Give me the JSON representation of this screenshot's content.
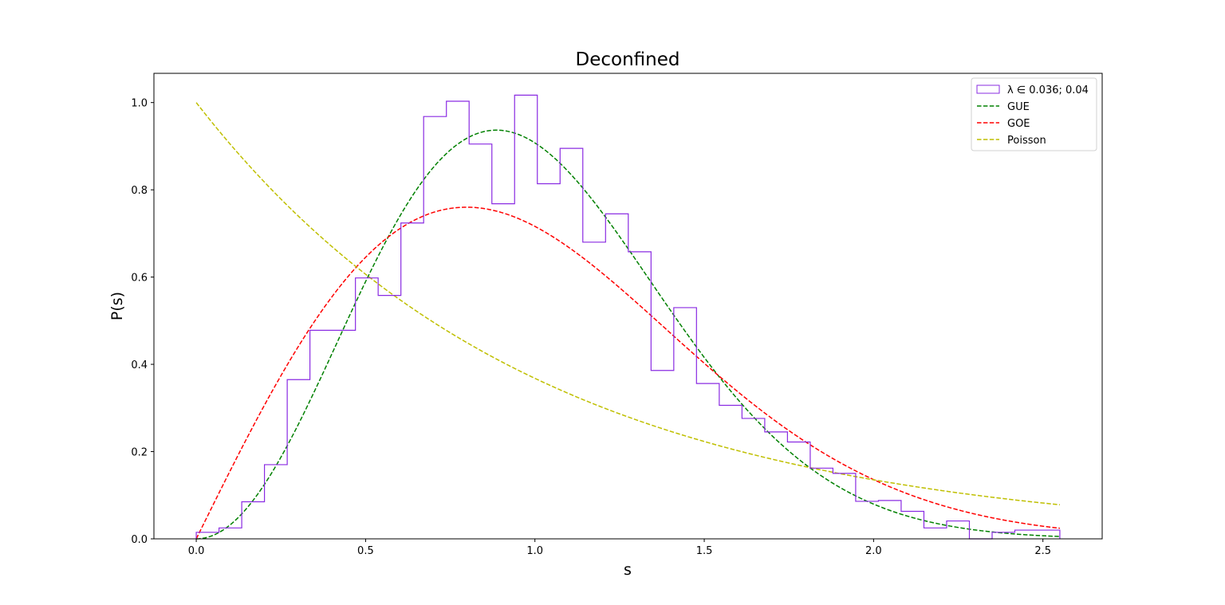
{
  "chart_data": {
    "type": "line",
    "title": "Deconfined",
    "xlabel": "s",
    "ylabel": "P(s)",
    "xlim": [
      -0.125,
      2.675
    ],
    "ylim": [
      0,
      1.067
    ],
    "xticks": [
      "0.0",
      "0.5",
      "1.0",
      "1.5",
      "2.0",
      "2.5"
    ],
    "yticks": [
      "0.0",
      "0.2",
      "0.4",
      "0.6",
      "0.8",
      "1.0"
    ],
    "grid": false,
    "legend_position": "top-right",
    "colors": {
      "histogram": "#8a2be2",
      "GUE": "#008000",
      "GOE": "#ff0000",
      "Poisson": "#bfbf00"
    },
    "histogram": {
      "name": "λ ∈ 0.036; 0.04",
      "bin_edges": [
        0.0,
        0.0672,
        0.1343,
        0.2014,
        0.2686,
        0.3357,
        0.4029,
        0.47,
        0.5371,
        0.6043,
        0.6714,
        0.7386,
        0.8057,
        0.8729,
        0.94,
        1.0071,
        1.0743,
        1.1414,
        1.2086,
        1.2757,
        1.3429,
        1.41,
        1.4771,
        1.5443,
        1.6114,
        1.6786,
        1.7457,
        1.8129,
        1.88,
        1.9471,
        2.0143,
        2.0814,
        2.1486,
        2.2157,
        2.2829,
        2.35,
        2.4171,
        2.55
      ],
      "counts": [
        0.015,
        0.025,
        0.085,
        0.17,
        0.365,
        0.478,
        0.478,
        0.598,
        0.558,
        0.724,
        0.968,
        1.003,
        0.905,
        0.768,
        1.017,
        0.814,
        0.895,
        0.68,
        0.745,
        0.658,
        0.386,
        0.53,
        0.356,
        0.306,
        0.276,
        0.245,
        0.222,
        0.162,
        0.15,
        0.086,
        0.088,
        0.063,
        0.025,
        0.041,
        0.0,
        0.015,
        0.02
      ]
    },
    "series": [
      {
        "name": "GUE",
        "formula": "(32/π²) s² exp(-4s²/π)"
      },
      {
        "name": "GOE",
        "formula": "(π/2) s exp(-πs²/4)"
      },
      {
        "name": "Poisson",
        "formula": "exp(-s)"
      }
    ],
    "x_range": [
      0,
      2.55
    ]
  }
}
